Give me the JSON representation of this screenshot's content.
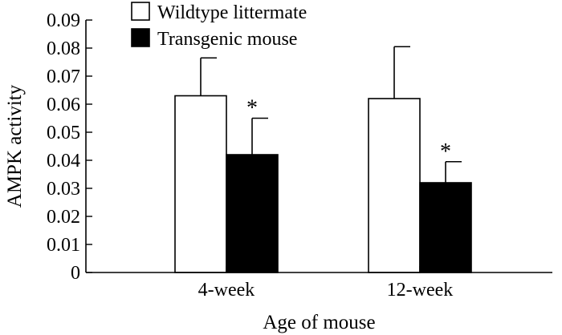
{
  "chart_data": {
    "type": "bar",
    "title": "",
    "xlabel": "Age of mouse",
    "ylabel": "AMPK activity",
    "ylim": [
      0,
      0.09
    ],
    "yticks": [
      0,
      0.01,
      0.02,
      0.03,
      0.04,
      0.05,
      0.06,
      0.07,
      0.08,
      0.09
    ],
    "ytick_labels": [
      "0",
      "0.01",
      "0.02",
      "0.03",
      "0.04",
      "0.05",
      "0.06",
      "0.07",
      "0.08",
      "0.09"
    ],
    "categories": [
      "4-week",
      "12-week"
    ],
    "legend_position": "top-left",
    "series": [
      {
        "name": "Wildtype littermate",
        "fill": "#ffffff",
        "values": [
          0.063,
          0.062
        ],
        "error": [
          0.0135,
          0.0185
        ],
        "significance": [
          "",
          ""
        ]
      },
      {
        "name": "Transgenic mouse",
        "fill": "#000000",
        "values": [
          0.042,
          0.032
        ],
        "error": [
          0.013,
          0.0075
        ],
        "significance": [
          "*",
          "*"
        ]
      }
    ],
    "grid": false
  }
}
